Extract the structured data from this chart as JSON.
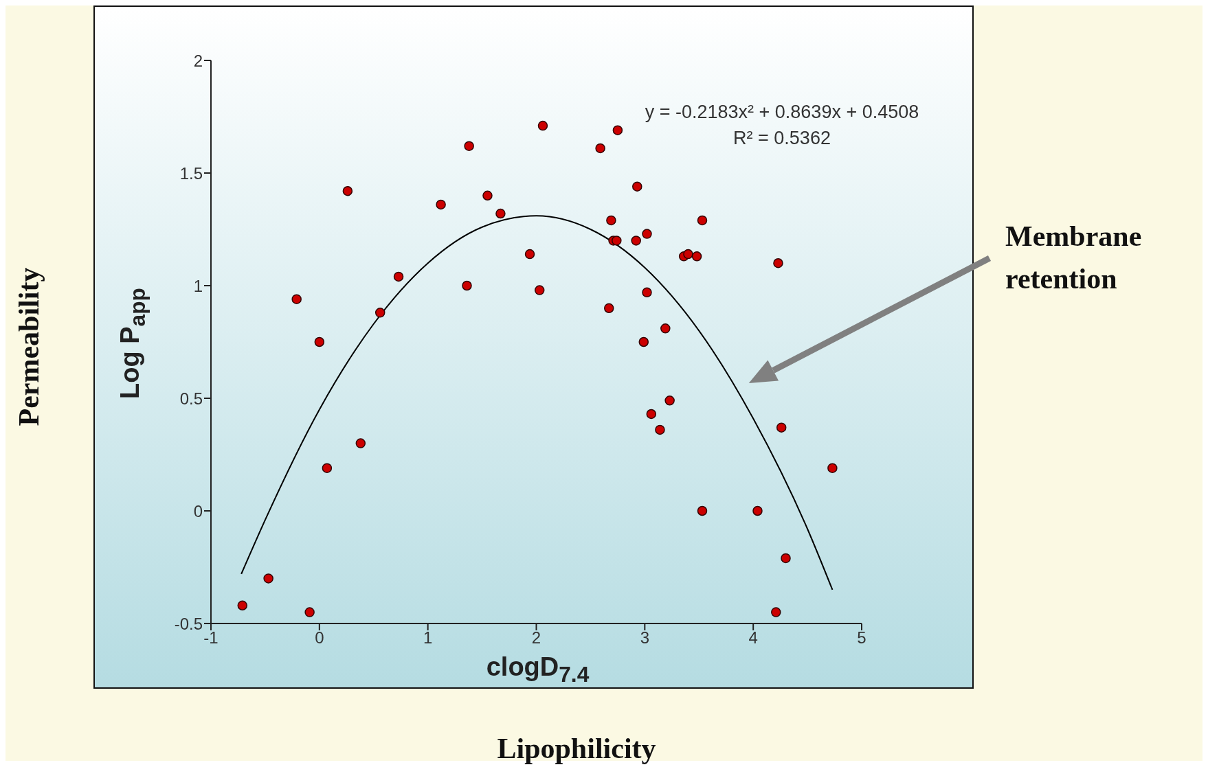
{
  "chart_data": {
    "type": "scatter",
    "xlabel": "clogD$_{7.4}$",
    "ylabel": "Log P$_{app}$",
    "annotations": [
      "y = -0.2183x² + 0.8639x + 0.4508",
      "R² = 0.5362",
      "Membrane retention",
      "Permeability",
      "Lipophilicity"
    ],
    "xlim": [
      -1,
      5
    ],
    "ylim": [
      -0.5,
      2
    ],
    "xticks": [
      -1,
      0,
      1,
      2,
      3,
      4,
      5
    ],
    "yticks": [
      -0.5,
      0,
      0.5,
      1,
      1.5,
      2
    ],
    "series": [
      {
        "color": "#cc0000",
        "marker": "circle",
        "x": [
          -0.71,
          -0.47,
          -0.09,
          -0.21,
          0.0,
          0.07,
          0.26,
          0.38,
          0.56,
          0.73,
          1.12,
          1.36,
          1.38,
          1.55,
          1.67,
          1.94,
          2.03,
          2.06,
          2.59,
          2.67,
          2.69,
          2.71,
          2.74,
          2.75,
          2.92,
          2.93,
          2.99,
          3.02,
          3.02,
          3.06,
          3.14,
          3.19,
          3.23,
          3.36,
          3.4,
          3.48,
          3.53,
          3.53,
          4.04,
          4.21,
          4.23,
          4.26,
          4.3,
          4.73
        ],
        "values": [
          -0.42,
          -0.3,
          -0.45,
          0.94,
          0.75,
          0.19,
          1.42,
          0.3,
          0.88,
          1.04,
          1.36,
          1.0,
          1.62,
          1.4,
          1.32,
          1.14,
          0.98,
          1.71,
          1.61,
          0.9,
          1.29,
          1.2,
          1.2,
          1.69,
          1.2,
          1.44,
          0.75,
          1.23,
          0.97,
          0.43,
          0.36,
          0.81,
          0.49,
          1.13,
          1.14,
          1.13,
          1.29,
          0.0,
          0.0,
          -0.45,
          1.1,
          0.37,
          -0.21,
          0.19
        ]
      },
      {
        "type": "line",
        "color": "#000000",
        "marker": "none",
        "x": [
          -0.72,
          -0.5,
          0,
          0.5,
          1,
          1.5,
          2,
          2.5,
          3,
          3.5,
          4,
          4.5,
          4.73
        ],
        "values": [
          -0.28,
          -0.04,
          0.45,
          0.83,
          1.1,
          1.26,
          1.31,
          1.25,
          1.08,
          0.8,
          0.41,
          -0.08,
          -0.35
        ]
      }
    ]
  }
}
